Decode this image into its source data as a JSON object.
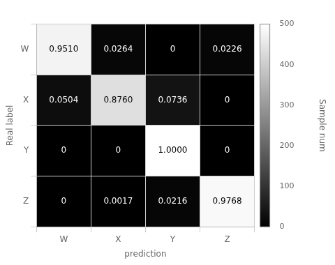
{
  "chart_data": {
    "type": "heatmap",
    "xlabel": "prediction",
    "ylabel": "Real label",
    "categories": [
      "W",
      "X",
      "Y",
      "Z"
    ],
    "values": [
      [
        0.951,
        0.0264,
        0.0,
        0.0226
      ],
      [
        0.0504,
        0.876,
        0.0736,
        0.0
      ],
      [
        0.0,
        0.0,
        1.0,
        0.0
      ],
      [
        0.0,
        0.0017,
        0.0216,
        0.9768
      ]
    ],
    "value_labels": [
      [
        "0.9510",
        "0.0264",
        "0",
        "0.0226"
      ],
      [
        "0.0504",
        "0.8760",
        "0.0736",
        "0"
      ],
      [
        "0",
        "0",
        "1.0000",
        "0"
      ],
      [
        "0",
        "0.0017",
        "0.0216",
        "0.9768"
      ]
    ],
    "max_samples": 500,
    "color": "gray",
    "colorbar_label": "Sample num",
    "colorbar_range": [
      0,
      500
    ],
    "colorbar_ticks": [
      0,
      100,
      200,
      300,
      400,
      500
    ],
    "grid": true,
    "data_labels": true
  }
}
